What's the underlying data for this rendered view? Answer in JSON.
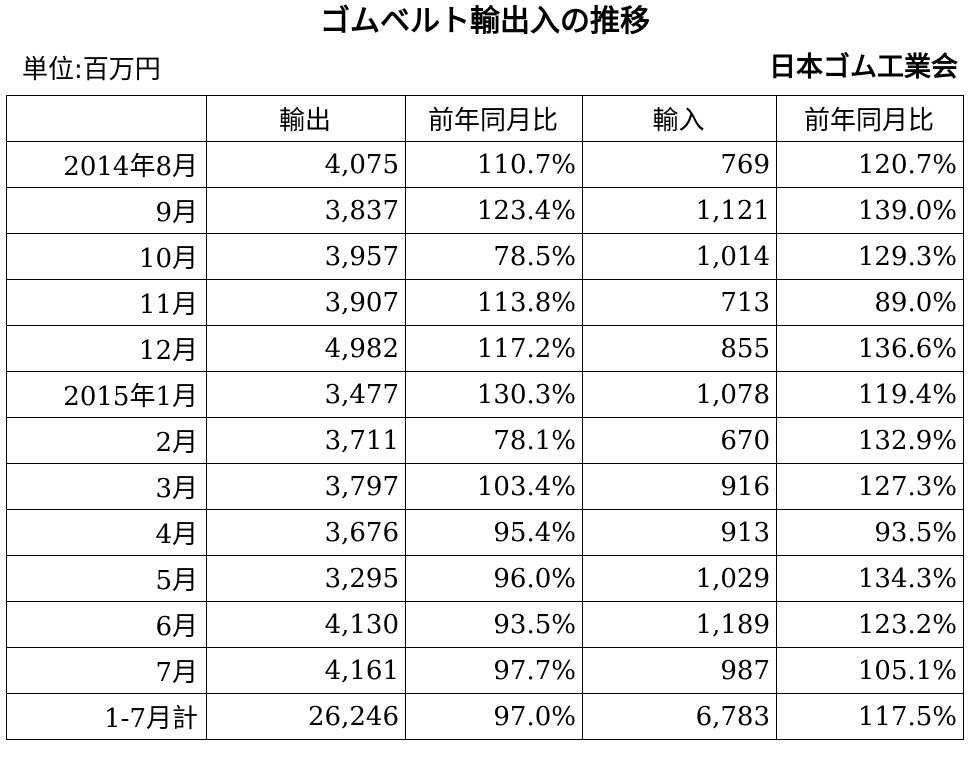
{
  "title": "ゴムベルト輸出入の推移",
  "unit": "単位:百万円",
  "source": "日本ゴム工業会",
  "table": {
    "headers": [
      "",
      "輸出",
      "前年同月比",
      "輸入",
      "前年同月比"
    ],
    "rows": [
      {
        "label": "2014年8月",
        "export": "4,075",
        "export_yoy": "110.7%",
        "import": "769",
        "import_yoy": "120.7%"
      },
      {
        "label": "9月",
        "export": "3,837",
        "export_yoy": "123.4%",
        "import": "1,121",
        "import_yoy": "139.0%"
      },
      {
        "label": "10月",
        "export": "3,957",
        "export_yoy": "78.5%",
        "import": "1,014",
        "import_yoy": "129.3%"
      },
      {
        "label": "11月",
        "export": "3,907",
        "export_yoy": "113.8%",
        "import": "713",
        "import_yoy": "89.0%"
      },
      {
        "label": "12月",
        "export": "4,982",
        "export_yoy": "117.2%",
        "import": "855",
        "import_yoy": "136.6%"
      },
      {
        "label": "2015年1月",
        "export": "3,477",
        "export_yoy": "130.3%",
        "import": "1,078",
        "import_yoy": "119.4%"
      },
      {
        "label": "2月",
        "export": "3,711",
        "export_yoy": "78.1%",
        "import": "670",
        "import_yoy": "132.9%"
      },
      {
        "label": "3月",
        "export": "3,797",
        "export_yoy": "103.4%",
        "import": "916",
        "import_yoy": "127.3%"
      },
      {
        "label": "4月",
        "export": "3,676",
        "export_yoy": "95.4%",
        "import": "913",
        "import_yoy": "93.5%"
      },
      {
        "label": "5月",
        "export": "3,295",
        "export_yoy": "96.0%",
        "import": "1,029",
        "import_yoy": "134.3%"
      },
      {
        "label": "6月",
        "export": "4,130",
        "export_yoy": "93.5%",
        "import": "1,189",
        "import_yoy": "123.2%"
      },
      {
        "label": "7月",
        "export": "4,161",
        "export_yoy": "97.7%",
        "import": "987",
        "import_yoy": "105.1%"
      },
      {
        "label": "1-7月計",
        "export": "26,246",
        "export_yoy": "97.0%",
        "import": "6,783",
        "import_yoy": "117.5%"
      }
    ]
  }
}
